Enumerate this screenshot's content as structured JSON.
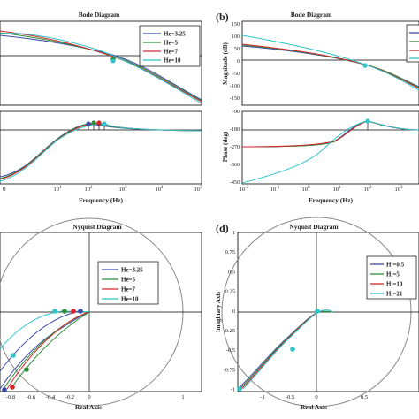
{
  "colors": {
    "blue": "#3b4ba8",
    "green": "#2f8f3a",
    "red": "#d2262a",
    "cyan": "#2ec4c9"
  },
  "chart_data": [
    {
      "id": "a",
      "type": "line",
      "title": "Bode Diagram",
      "xlabel": "Frequency (Hz)",
      "x_ticks": [
        "0",
        "10^0",
        "10^1",
        "10^2",
        "10^3",
        "10^4",
        "10^5"
      ],
      "legend": [
        "He=3.25",
        "He=5",
        "He=7",
        "He=10"
      ],
      "legend_position": "top-right"
    },
    {
      "id": "b",
      "type": "line",
      "label": "(b)",
      "title": "Bode Diagram",
      "xlabel": "Frequency (Hz)",
      "ylabel_top": "Magnitude (dB)",
      "ylabel_bottom": "Phase (deg)",
      "mag_ticks": [
        "150",
        "100",
        "50",
        "0",
        "-50",
        "-100",
        "-150"
      ],
      "phase_ticks": [
        "-90",
        "-180",
        "-270",
        "-360",
        "-450"
      ],
      "x_ticks": [
        "10^-2",
        "10^-1",
        "10^0",
        "10^1",
        "10^2",
        "10^3"
      ],
      "legend_position": "top-right"
    },
    {
      "id": "c",
      "type": "line",
      "title": "Nyquist Diagram",
      "xlabel": "Real Axis",
      "x_ticks": [
        "-0.8",
        "-0.6",
        "-0.4",
        "-0.2",
        "0",
        "1"
      ],
      "legend": [
        "He=3.25",
        "He=5",
        "He=7",
        "He=10"
      ],
      "legend_position": "top-right"
    },
    {
      "id": "d",
      "type": "line",
      "label": "(d)",
      "title": "Nyquist Diagram",
      "xlabel": "Real Axis",
      "ylabel": "Imaginary Axis",
      "x_ticks": [
        "-1",
        "-0.5",
        "0",
        "0.5"
      ],
      "y_ticks": [
        "1",
        "0.75",
        "0.5",
        "0.25",
        "0",
        "-0.25",
        "-0.5",
        "-0.75",
        "-1"
      ],
      "legend": [
        "Hi=0.5",
        "Hi=5",
        "Hi=10",
        "Hi=21"
      ],
      "legend_position": "top-right"
    }
  ]
}
